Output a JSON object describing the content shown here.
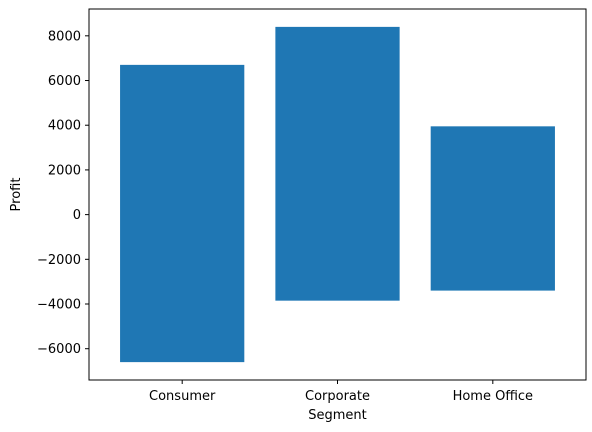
{
  "chart_data": {
    "type": "bar",
    "categories": [
      "Consumer",
      "Corporate",
      "Home Office"
    ],
    "series": [
      {
        "low": [
          -6600,
          -3850,
          -3400
        ],
        "high": [
          6700,
          8400,
          3950
        ]
      }
    ],
    "xlabel": "Segment",
    "ylabel": "Profit",
    "ylim": [
      -7400,
      9200
    ],
    "yticks": [
      -6000,
      -4000,
      -2000,
      0,
      2000,
      4000,
      6000,
      8000
    ],
    "ytick_labels": [
      "−6000",
      "−4000",
      "−2000",
      "0",
      "2000",
      "4000",
      "6000",
      "8000"
    ],
    "grid": false,
    "colors": {
      "bar": "#1f77b4",
      "axis": "#000000",
      "background": "#ffffff"
    }
  }
}
